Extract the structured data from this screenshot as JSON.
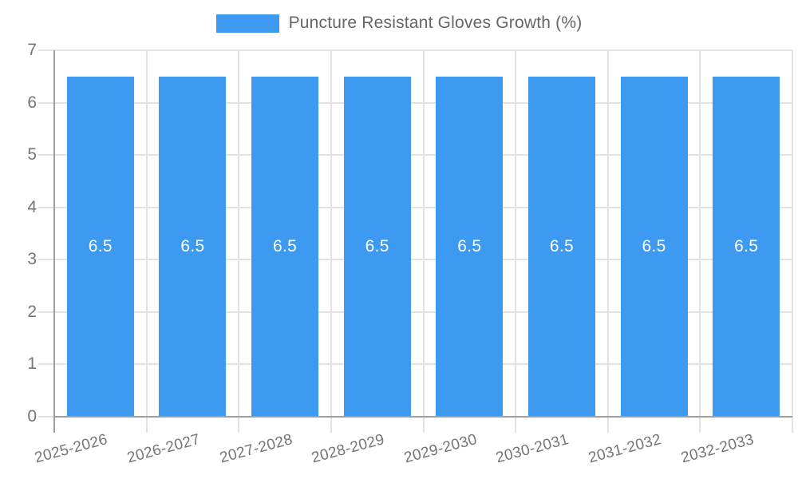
{
  "chart_data": {
    "type": "bar",
    "title": "Puncture Resistant Gloves Growth (%)",
    "legend": [
      "Puncture Resistant Gloves Growth (%)"
    ],
    "legend_position": "top",
    "categories": [
      "2025-2026",
      "2026-2027",
      "2027-2028",
      "2028-2029",
      "2029-2030",
      "2030-2031",
      "2031-2032",
      "2032-2033"
    ],
    "values": [
      6.5,
      6.5,
      6.5,
      6.5,
      6.5,
      6.5,
      6.5,
      6.5
    ],
    "data_labels": [
      "6.5",
      "6.5",
      "6.5",
      "6.5",
      "6.5",
      "6.5",
      "6.5",
      "6.5"
    ],
    "xlabel": "",
    "ylabel": "",
    "ylim": [
      0,
      7
    ],
    "yticks": [
      0,
      1,
      2,
      3,
      4,
      5,
      6,
      7
    ],
    "grid": true,
    "colors": {
      "bar": "#3D9AF0",
      "bar_label": "#ffffff",
      "grid": "#E3E3E3",
      "axis": "#9E9E9E",
      "tick_text": "#757575",
      "legend_text": "#666666",
      "background": "#ffffff"
    }
  }
}
